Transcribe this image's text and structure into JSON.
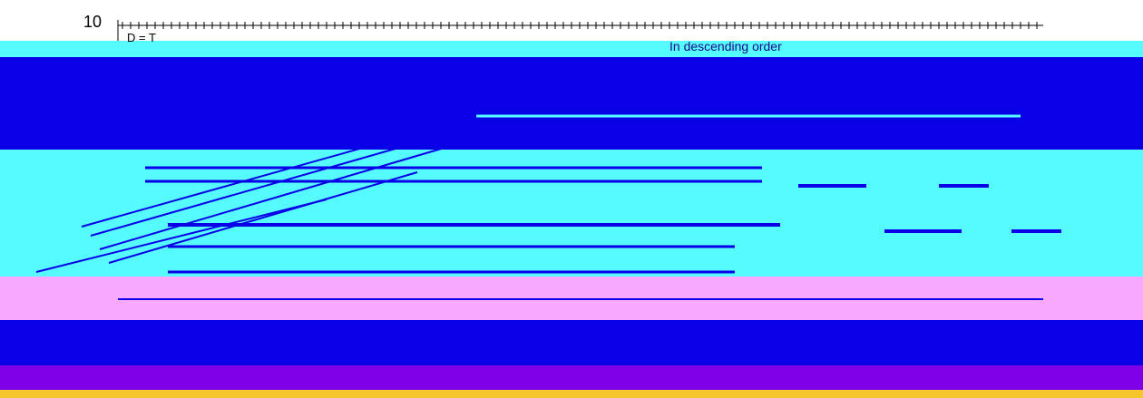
{
  "colors": {
    "white": "#ffffff",
    "cyan": "#55fbff",
    "blue": "#0a00e8",
    "pink": "#f8a8ff",
    "violet": "#7f00e6",
    "orange": "#f5c72a",
    "green": "#2adf7a",
    "ink": "#1a0a8a"
  },
  "chart_data": {
    "type": "line",
    "title": "",
    "xlabel": "",
    "ylabel": "",
    "y_top_tick": "10",
    "legend_text": "D = T",
    "annotation": "In descending order",
    "caption": "",
    "series": []
  }
}
